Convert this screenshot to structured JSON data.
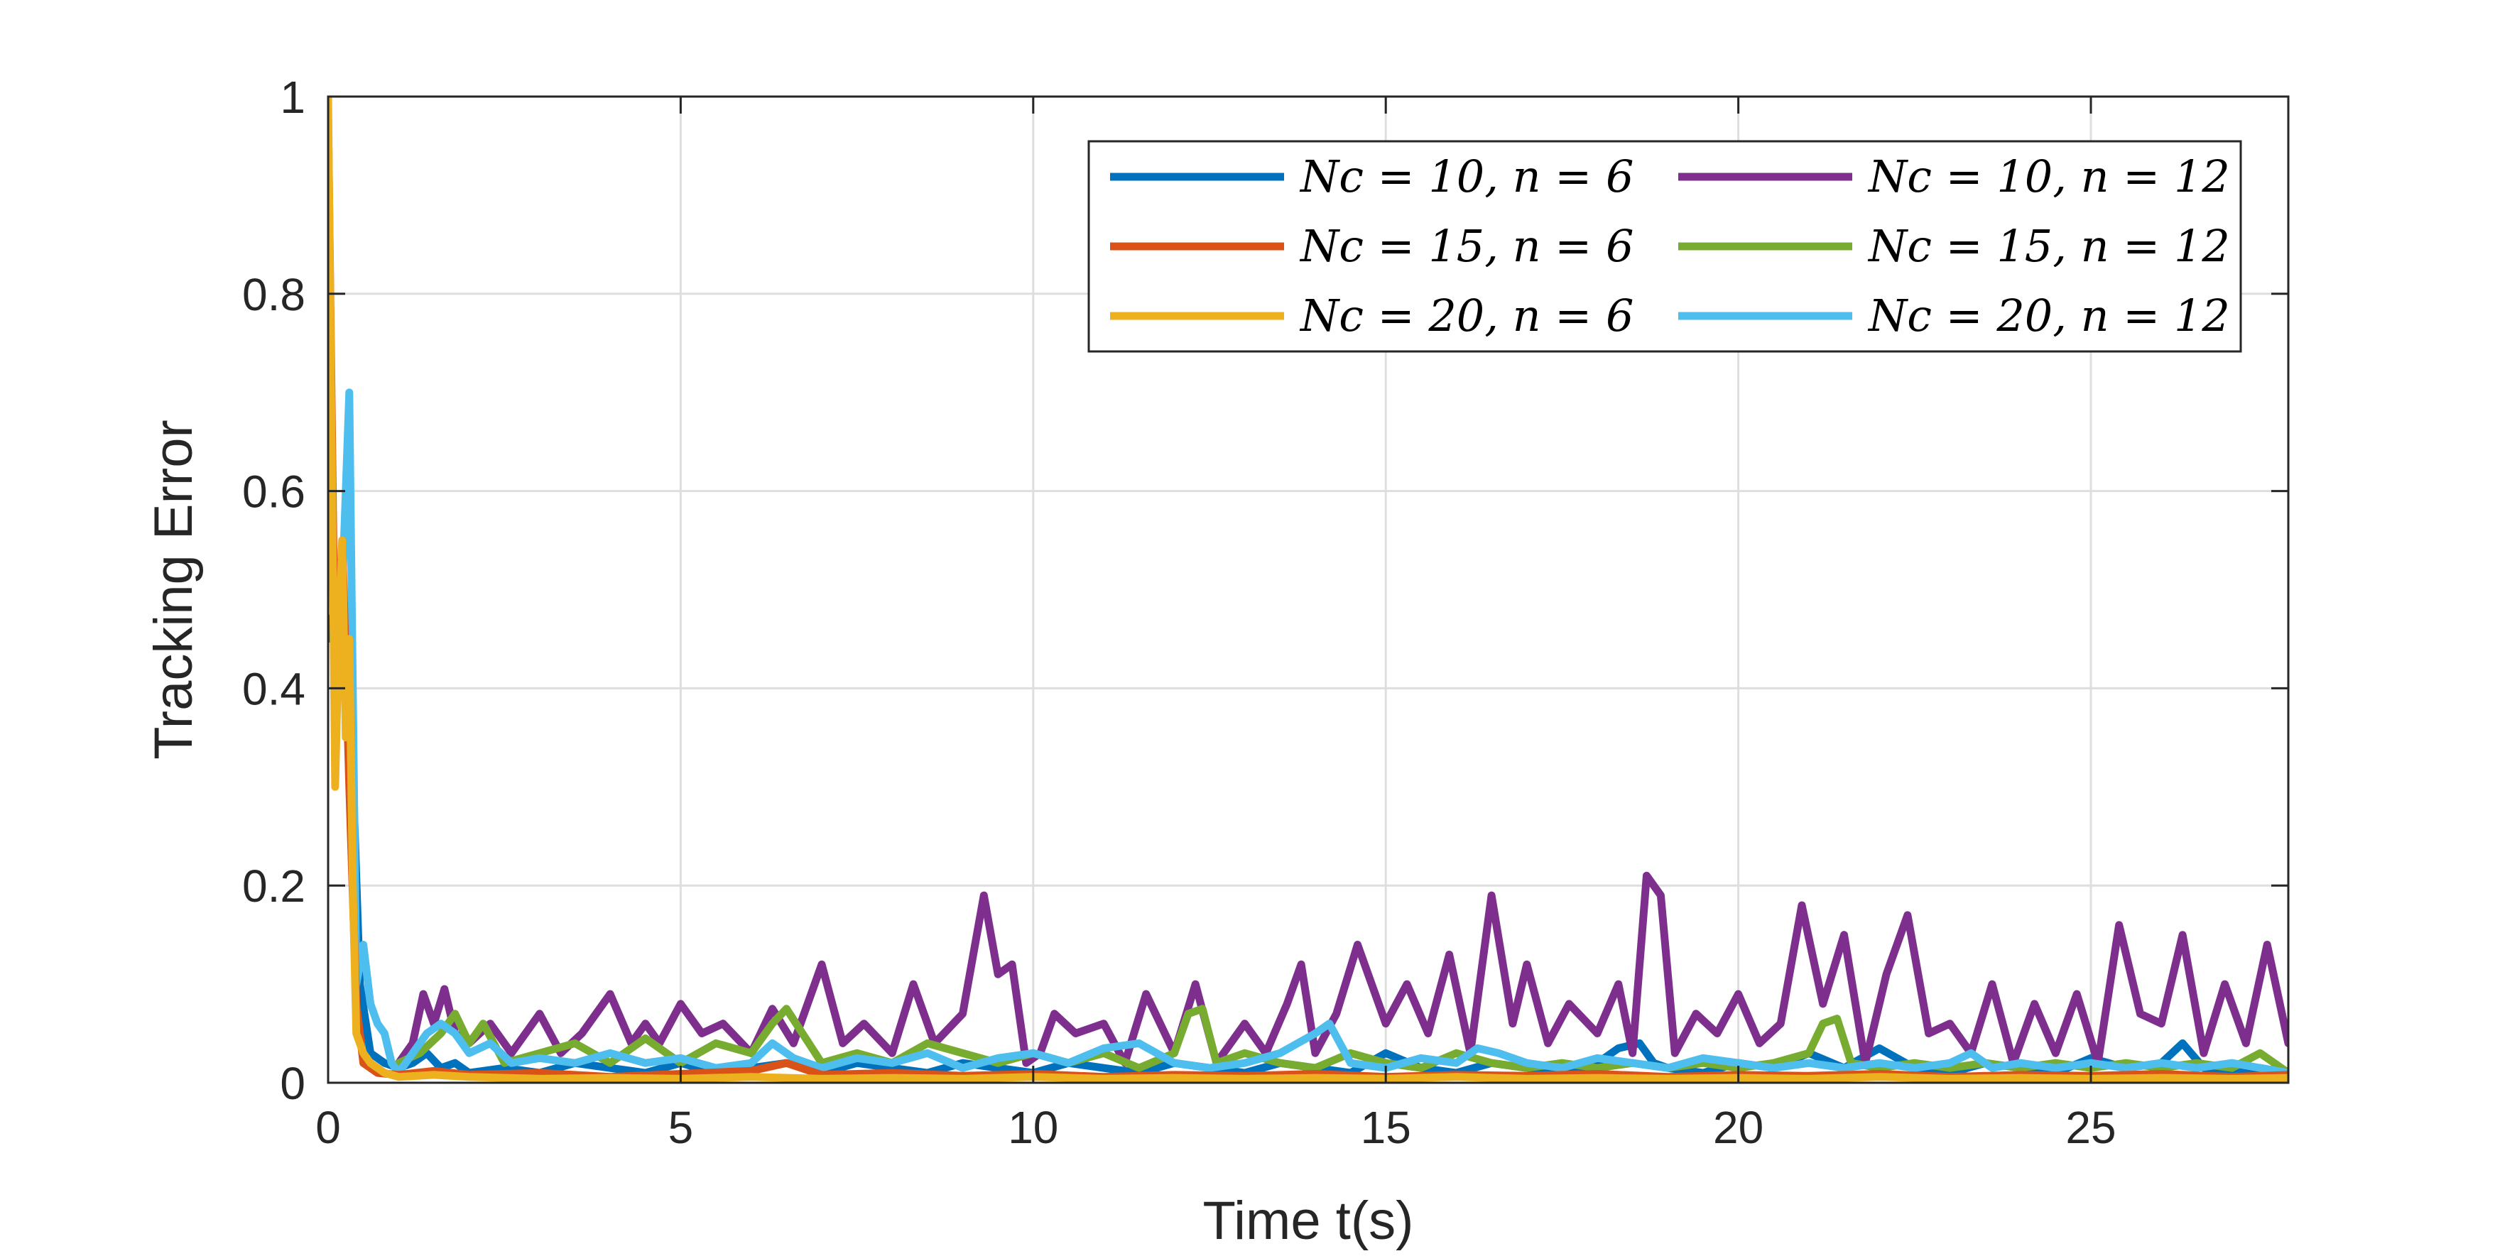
{
  "chart_data": {
    "type": "line",
    "xlabel": "Time t(s)",
    "ylabel": "Tracking Error",
    "xlim": [
      0,
      27.8
    ],
    "ylim": [
      0,
      1
    ],
    "xticks": [
      0,
      5,
      10,
      15,
      20,
      25
    ],
    "yticks": [
      0,
      0.2,
      0.4,
      0.6,
      0.8,
      1
    ],
    "ytick_labels": [
      "0",
      "0.2",
      "0.4",
      "0.6",
      "0.8",
      "1"
    ],
    "grid": true,
    "legend_position": "top-right",
    "legend_columns": 2,
    "series": [
      {
        "name": "N_c = 10, n = 6",
        "label": "Nc = 10, n = 6",
        "color": "#0072BD",
        "x": [
          0,
          0.15,
          0.3,
          0.45,
          0.6,
          0.8,
          1,
          1.2,
          1.4,
          1.6,
          1.8,
          2,
          2.5,
          3,
          3.5,
          4,
          4.5,
          5,
          5.5,
          6,
          6.5,
          7,
          7.5,
          8,
          8.5,
          9,
          9.5,
          10,
          10.5,
          11,
          11.5,
          12,
          12.5,
          13,
          13.5,
          14,
          14.5,
          15,
          15.5,
          16,
          16.5,
          17,
          17.5,
          18,
          18.3,
          18.6,
          18.8,
          19,
          19.5,
          20,
          20.5,
          21,
          21.5,
          22,
          22.5,
          23,
          23.5,
          24,
          24.5,
          25,
          25.5,
          26,
          26.3,
          26.6,
          27,
          27.4,
          27.8
        ],
        "values": [
          0.45,
          0.5,
          0.42,
          0.1,
          0.03,
          0.02,
          0.015,
          0.02,
          0.03,
          0.015,
          0.02,
          0.01,
          0.015,
          0.01,
          0.02,
          0.015,
          0.01,
          0.02,
          0.01,
          0.015,
          0.02,
          0.01,
          0.02,
          0.015,
          0.01,
          0.02,
          0.015,
          0.01,
          0.02,
          0.015,
          0.01,
          0.02,
          0.015,
          0.01,
          0.02,
          0.015,
          0.01,
          0.03,
          0.015,
          0.01,
          0.02,
          0.015,
          0.01,
          0.02,
          0.035,
          0.04,
          0.02,
          0.015,
          0.01,
          0.02,
          0.015,
          0.03,
          0.015,
          0.035,
          0.015,
          0.01,
          0.02,
          0.015,
          0.01,
          0.025,
          0.015,
          0.02,
          0.04,
          0.015,
          0.01,
          0.015,
          0.01
        ]
      },
      {
        "name": "N_c = 15, n = 6",
        "label": "Nc = 15, n = 6",
        "color": "#D95319",
        "x": [
          0,
          0.1,
          0.2,
          0.3,
          0.4,
          0.5,
          0.7,
          1,
          1.5,
          2,
          3,
          4,
          5,
          6,
          6.5,
          7,
          8,
          9,
          10,
          11,
          12,
          13,
          14,
          15,
          16,
          17,
          18,
          19,
          20,
          21,
          22,
          23,
          24,
          25,
          26,
          27,
          27.8
        ],
        "values": [
          0.98,
          0.4,
          0.55,
          0.3,
          0.08,
          0.02,
          0.01,
          0.008,
          0.012,
          0.008,
          0.01,
          0.006,
          0.009,
          0.012,
          0.02,
          0.008,
          0.01,
          0.007,
          0.009,
          0.006,
          0.008,
          0.007,
          0.009,
          0.006,
          0.008,
          0.007,
          0.009,
          0.006,
          0.008,
          0.007,
          0.009,
          0.006,
          0.008,
          0.007,
          0.009,
          0.006,
          0.008
        ]
      },
      {
        "name": "N_c = 20, n = 6",
        "label": "Nc = 20, n = 6",
        "color": "#EDB120",
        "x": [
          0,
          0.1,
          0.15,
          0.2,
          0.25,
          0.3,
          0.35,
          0.4,
          0.5,
          0.6,
          0.8,
          1,
          1.5,
          2,
          3,
          4,
          5,
          6,
          7,
          8,
          9,
          10,
          11,
          12,
          13,
          14,
          15,
          16,
          17,
          18,
          19,
          20,
          21,
          22,
          23,
          24,
          25,
          26,
          27,
          27.8
        ],
        "values": [
          1.0,
          0.3,
          0.45,
          0.55,
          0.35,
          0.45,
          0.2,
          0.05,
          0.03,
          0.02,
          0.01,
          0.006,
          0.008,
          0.006,
          0.004,
          0.005,
          0.004,
          0.006,
          0.004,
          0.005,
          0.004,
          0.006,
          0.004,
          0.005,
          0.004,
          0.005,
          0.004,
          0.006,
          0.004,
          0.005,
          0.004,
          0.005,
          0.004,
          0.006,
          0.004,
          0.005,
          0.004,
          0.005,
          0.004,
          0.005
        ]
      },
      {
        "name": "N_c = 10, n = 12",
        "label": "Nc = 10, n = 12",
        "color": "#7E2F8E",
        "x": [
          1.0,
          1.2,
          1.35,
          1.5,
          1.65,
          1.8,
          2,
          2.3,
          2.6,
          3,
          3.3,
          3.6,
          4,
          4.3,
          4.5,
          4.7,
          5,
          5.3,
          5.6,
          6,
          6.3,
          6.6,
          7,
          7.3,
          7.6,
          8,
          8.3,
          8.6,
          9,
          9.3,
          9.5,
          9.7,
          9.9,
          10.1,
          10.3,
          10.6,
          11,
          11.3,
          11.6,
          12,
          12.3,
          12.6,
          13,
          13.3,
          13.6,
          13.8,
          14,
          14.3,
          14.6,
          15,
          15.3,
          15.6,
          15.9,
          16.2,
          16.5,
          16.8,
          17,
          17.3,
          17.6,
          18,
          18.3,
          18.5,
          18.7,
          18.9,
          19.1,
          19.4,
          19.7,
          20,
          20.3,
          20.6,
          20.9,
          21.2,
          21.5,
          21.8,
          22.1,
          22.4,
          22.7,
          23,
          23.3,
          23.6,
          23.9,
          24.2,
          24.5,
          24.8,
          25.1,
          25.4,
          25.7,
          26,
          26.3,
          26.6,
          26.9,
          27.2,
          27.5,
          27.8
        ],
        "values": [
          0.02,
          0.04,
          0.09,
          0.06,
          0.095,
          0.05,
          0.04,
          0.06,
          0.03,
          0.07,
          0.03,
          0.05,
          0.09,
          0.04,
          0.06,
          0.04,
          0.08,
          0.05,
          0.06,
          0.03,
          0.075,
          0.04,
          0.12,
          0.04,
          0.06,
          0.03,
          0.1,
          0.04,
          0.07,
          0.19,
          0.11,
          0.12,
          0.02,
          0.03,
          0.07,
          0.05,
          0.06,
          0.02,
          0.09,
          0.03,
          0.1,
          0.02,
          0.06,
          0.03,
          0.08,
          0.12,
          0.03,
          0.07,
          0.14,
          0.06,
          0.1,
          0.05,
          0.13,
          0.03,
          0.19,
          0.06,
          0.12,
          0.04,
          0.08,
          0.05,
          0.1,
          0.03,
          0.21,
          0.19,
          0.03,
          0.07,
          0.05,
          0.09,
          0.04,
          0.06,
          0.18,
          0.08,
          0.15,
          0.02,
          0.11,
          0.17,
          0.05,
          0.06,
          0.03,
          0.1,
          0.02,
          0.08,
          0.03,
          0.09,
          0.02,
          0.16,
          0.07,
          0.06,
          0.15,
          0.03,
          0.1,
          0.04,
          0.14,
          0.04
        ]
      },
      {
        "name": "N_c = 15, n = 12",
        "label": "Nc = 15, n = 12",
        "color": "#77AC30",
        "x": [
          1.0,
          1.3,
          1.6,
          1.8,
          2,
          2.2,
          2.5,
          3,
          3.5,
          4,
          4.5,
          5,
          5.5,
          6,
          6.3,
          6.5,
          7,
          7.5,
          8,
          8.5,
          9,
          9.5,
          10,
          10.5,
          11,
          11.5,
          12,
          12.2,
          12.4,
          12.6,
          13,
          13.5,
          14,
          14.5,
          15,
          15.5,
          16,
          16.5,
          17,
          17.5,
          18,
          18.5,
          19,
          19.5,
          20,
          20.5,
          21,
          21.2,
          21.4,
          21.6,
          22,
          22.5,
          23,
          23.5,
          24,
          24.5,
          25,
          25.5,
          26,
          26.5,
          27,
          27.4,
          27.8
        ],
        "values": [
          0.02,
          0.03,
          0.05,
          0.07,
          0.04,
          0.06,
          0.02,
          0.03,
          0.04,
          0.02,
          0.045,
          0.02,
          0.04,
          0.03,
          0.06,
          0.075,
          0.02,
          0.03,
          0.02,
          0.04,
          0.03,
          0.02,
          0.03,
          0.02,
          0.03,
          0.015,
          0.03,
          0.07,
          0.075,
          0.02,
          0.03,
          0.02,
          0.015,
          0.03,
          0.02,
          0.015,
          0.03,
          0.02,
          0.015,
          0.02,
          0.015,
          0.02,
          0.015,
          0.02,
          0.015,
          0.02,
          0.03,
          0.06,
          0.065,
          0.02,
          0.015,
          0.02,
          0.015,
          0.02,
          0.015,
          0.02,
          0.015,
          0.02,
          0.015,
          0.02,
          0.015,
          0.03,
          0.01
        ]
      },
      {
        "name": "N_c = 20, n = 12",
        "label": "Nc = 20, n = 12",
        "color": "#4DBEEE",
        "x": [
          0,
          0.1,
          0.2,
          0.3,
          0.4,
          0.5,
          0.6,
          0.7,
          0.8,
          0.9,
          1,
          1.2,
          1.4,
          1.6,
          1.8,
          2,
          2.3,
          2.6,
          3,
          3.5,
          4,
          4.5,
          5,
          5.5,
          6,
          6.3,
          6.6,
          7,
          7.5,
          8,
          8.5,
          9,
          9.5,
          10,
          10.5,
          11,
          11.5,
          12,
          12.5,
          13,
          13.5,
          14,
          14.2,
          14.5,
          15,
          15.5,
          16,
          16.3,
          16.6,
          17,
          17.5,
          18,
          18.5,
          19,
          19.5,
          20,
          20.5,
          21,
          21.5,
          22,
          22.5,
          23,
          23.3,
          23.6,
          24,
          24.5,
          25,
          25.5,
          26,
          26.5,
          27,
          27.4,
          27.8
        ],
        "values": [
          0.66,
          0.45,
          0.5,
          0.7,
          0.1,
          0.14,
          0.08,
          0.06,
          0.05,
          0.02,
          0.01,
          0.03,
          0.05,
          0.06,
          0.05,
          0.03,
          0.04,
          0.02,
          0.025,
          0.02,
          0.03,
          0.02,
          0.025,
          0.015,
          0.02,
          0.04,
          0.025,
          0.015,
          0.025,
          0.02,
          0.03,
          0.015,
          0.025,
          0.03,
          0.02,
          0.035,
          0.04,
          0.02,
          0.015,
          0.02,
          0.03,
          0.05,
          0.06,
          0.02,
          0.015,
          0.025,
          0.02,
          0.035,
          0.03,
          0.02,
          0.015,
          0.025,
          0.02,
          0.015,
          0.025,
          0.02,
          0.015,
          0.02,
          0.015,
          0.02,
          0.015,
          0.02,
          0.03,
          0.015,
          0.02,
          0.015,
          0.02,
          0.015,
          0.02,
          0.015,
          0.02,
          0.015,
          0.01
        ]
      }
    ]
  }
}
